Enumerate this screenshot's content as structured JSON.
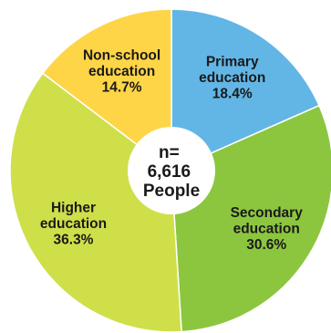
{
  "chart_data": {
    "type": "pie",
    "title": "",
    "center_label": [
      "n=",
      "6,616",
      "People"
    ],
    "slices": [
      {
        "name": "Primary education",
        "value": 18.4,
        "label_lines": [
          "Primary",
          "education",
          "18.4%"
        ],
        "color": "#62b6e6"
      },
      {
        "name": "Secondary education",
        "value": 30.6,
        "label_lines": [
          "Secondary",
          "education",
          "30.6%"
        ],
        "color": "#8cc63f"
      },
      {
        "name": "Higher education",
        "value": 36.3,
        "label_lines": [
          "Higher",
          "education",
          "36.3%"
        ],
        "color": "#cfdf4a"
      },
      {
        "name": "Non-school education",
        "value": 14.7,
        "label_lines": [
          "Non-school",
          "education",
          "14.7%"
        ],
        "color": "#ffd548"
      }
    ]
  }
}
